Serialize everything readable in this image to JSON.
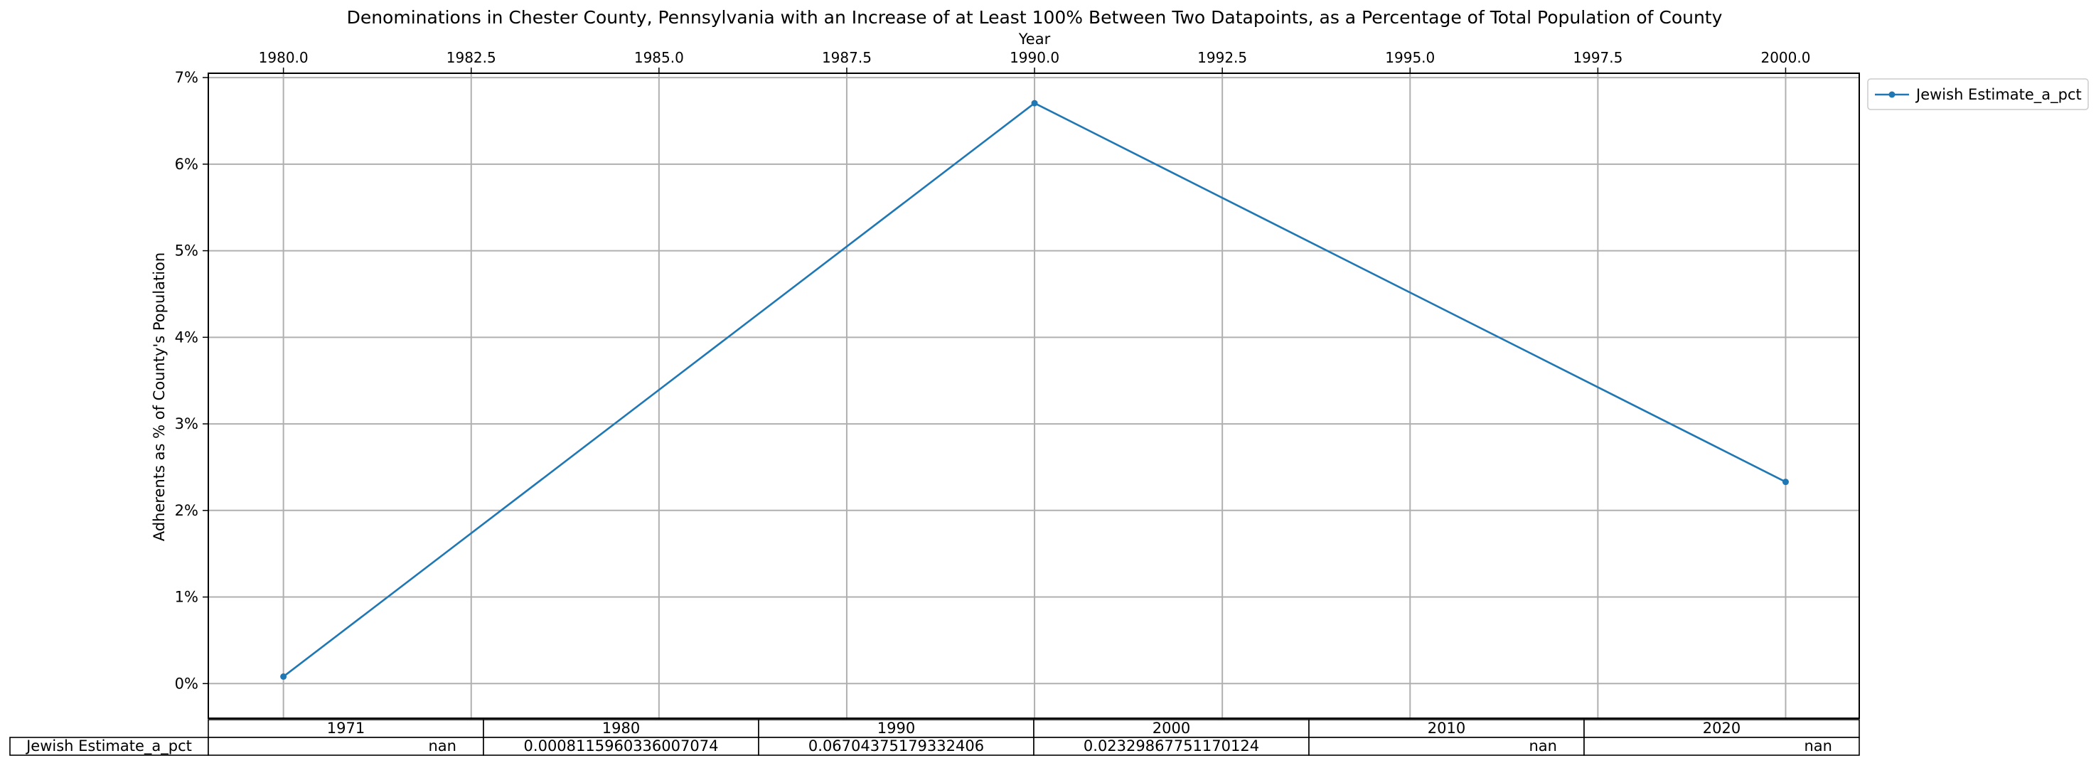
{
  "chart_data": {
    "type": "line",
    "title": "Denominations in Chester County, Pennsylvania with an Increase of at Least 100% Between Two Datapoints, as a Percentage of Total Population of County",
    "xlabel": "Year",
    "ylabel": "Adherents as % of County's Population",
    "xlim": [
      1979.0,
      2000.98
    ],
    "ylim": [
      -0.004,
      0.0705
    ],
    "x_ticks": [
      1980.0,
      1982.5,
      1985.0,
      1987.5,
      1990.0,
      1992.5,
      1995.0,
      1997.5,
      2000.0
    ],
    "x_tick_labels": [
      "1980.0",
      "1982.5",
      "1985.0",
      "1987.5",
      "1990.0",
      "1992.5",
      "1995.0",
      "1997.5",
      "2000.0"
    ],
    "y_ticks": [
      0,
      0.01,
      0.02,
      0.03,
      0.04,
      0.05,
      0.06,
      0.07
    ],
    "y_tick_labels": [
      "0%",
      "1%",
      "2%",
      "3%",
      "4%",
      "5%",
      "6%",
      "7%"
    ],
    "x_axis_position": "top",
    "grid": true,
    "legend_position": "outside top-right",
    "colors": {
      "series": "#1f77b4",
      "grid": "#b0b0b0",
      "axis": "#000000"
    },
    "series": [
      {
        "name": "Jewish Estimate_a_pct",
        "x": [
          1980,
          1990,
          2000
        ],
        "values": [
          0.0008115960336007074,
          0.06704375179332406,
          0.02329867751170124
        ]
      }
    ],
    "table": {
      "columns": [
        "1971",
        "1980",
        "1990",
        "2000",
        "2010",
        "2020"
      ],
      "rows": [
        {
          "label": "Jewish Estimate_a_pct",
          "cells": [
            "nan",
            "0.0008115960336007074",
            "0.06704375179332406",
            "0.02329867751170124",
            "nan",
            "nan"
          ]
        }
      ]
    }
  }
}
